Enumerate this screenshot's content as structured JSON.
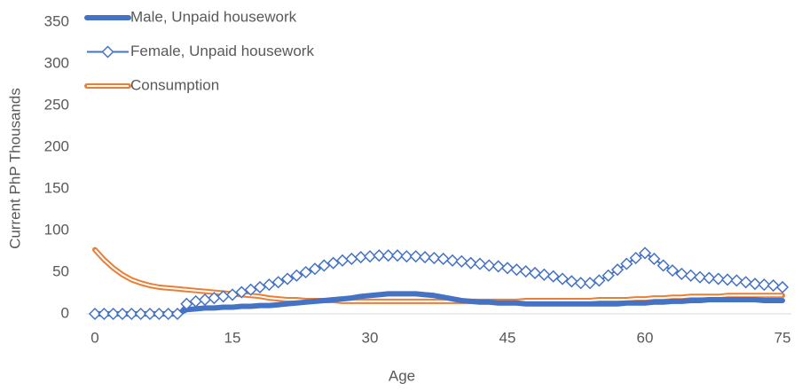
{
  "chart_data": {
    "type": "line",
    "x_label": "Age",
    "y_label": "Current PhP Thousands",
    "x": [
      0,
      1,
      2,
      3,
      4,
      5,
      6,
      7,
      8,
      9,
      10,
      11,
      12,
      13,
      14,
      15,
      16,
      17,
      18,
      19,
      20,
      21,
      22,
      23,
      24,
      25,
      26,
      27,
      28,
      29,
      30,
      31,
      32,
      33,
      34,
      35,
      36,
      37,
      38,
      39,
      40,
      41,
      42,
      43,
      44,
      45,
      46,
      47,
      48,
      49,
      50,
      51,
      52,
      53,
      54,
      55,
      56,
      57,
      58,
      59,
      60,
      61,
      62,
      63,
      64,
      65,
      66,
      67,
      68,
      69,
      70,
      71,
      72,
      73,
      74,
      75
    ],
    "series": [
      {
        "name": "Male, Unpaid housework",
        "color": "#4472c4",
        "style": "thick",
        "values": [
          0,
          0,
          0,
          0,
          0,
          0,
          0,
          0,
          0,
          0,
          5,
          6,
          7,
          7,
          8,
          8,
          9,
          9,
          10,
          10,
          11,
          12,
          13,
          14,
          15,
          16,
          17,
          18,
          19,
          21,
          22,
          23,
          24,
          24,
          24,
          24,
          23,
          22,
          20,
          18,
          16,
          15,
          14,
          14,
          13,
          13,
          13,
          12,
          12,
          12,
          12,
          12,
          12,
          12,
          12,
          12,
          12,
          12,
          13,
          13,
          13,
          14,
          14,
          15,
          15,
          16,
          16,
          17,
          17,
          17,
          17,
          17,
          17,
          16,
          16,
          16
        ]
      },
      {
        "name": "Female, Unpaid housework",
        "color": "#4472c4",
        "style": "diamond",
        "values": [
          0,
          0,
          0,
          0,
          0,
          0,
          0,
          0,
          0,
          0,
          12,
          15,
          17,
          19,
          21,
          23,
          26,
          29,
          32,
          35,
          38,
          42,
          46,
          50,
          54,
          58,
          61,
          64,
          66,
          68,
          69,
          70,
          70,
          70,
          69,
          69,
          68,
          67,
          66,
          64,
          63,
          61,
          60,
          58,
          57,
          55,
          53,
          51,
          49,
          47,
          45,
          42,
          39,
          37,
          37,
          40,
          46,
          53,
          60,
          67,
          73,
          66,
          58,
          52,
          48,
          46,
          44,
          43,
          42,
          41,
          40,
          38,
          36,
          35,
          34,
          32
        ]
      },
      {
        "name": "Consumption",
        "color": "#ed7d31",
        "style": "double",
        "values": [
          77,
          65,
          55,
          47,
          41,
          37,
          34,
          32,
          31,
          30,
          29,
          28,
          27,
          26,
          25,
          24,
          23,
          22,
          21,
          19,
          18,
          17,
          17,
          16,
          16,
          16,
          16,
          15,
          15,
          15,
          15,
          15,
          15,
          15,
          15,
          15,
          15,
          15,
          15,
          15,
          15,
          15,
          15,
          15,
          15,
          15,
          15,
          16,
          16,
          16,
          16,
          16,
          16,
          16,
          16,
          17,
          17,
          17,
          17,
          18,
          18,
          19,
          19,
          20,
          20,
          21,
          21,
          21,
          21,
          22,
          22,
          22,
          22,
          22,
          22,
          22
        ]
      }
    ],
    "xlim": [
      0,
      75
    ],
    "xticks": [
      0,
      15,
      30,
      45,
      60,
      75
    ],
    "ylim": [
      0,
      350
    ],
    "yticks": [
      0,
      50,
      100,
      150,
      200,
      250,
      300,
      350
    ],
    "legend": "top-left"
  }
}
